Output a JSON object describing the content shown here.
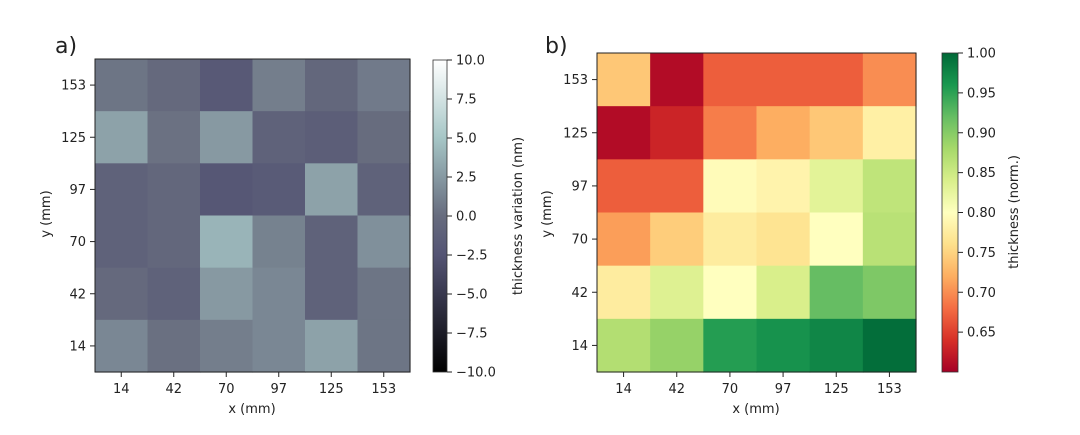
{
  "chart_data": [
    {
      "type": "heatmap",
      "panel_label": "a)",
      "x_ticks": [
        "14",
        "42",
        "70",
        "97",
        "125",
        "153"
      ],
      "y_ticks": [
        "14",
        "42",
        "70",
        "97",
        "125",
        "153"
      ],
      "xlabel": "x (mm)",
      "ylabel": "y (mm)",
      "colorbar": {
        "label": "thickness variation (nm)",
        "range": [
          -10,
          10
        ],
        "ticks": [
          "10.0",
          "7.5",
          "5.0",
          "2.5",
          "0.0",
          "−2.5",
          "−5.0",
          "−7.5",
          "−10.0"
        ],
        "tick_values": [
          10,
          7.5,
          5,
          2.5,
          0,
          -2.5,
          -5,
          -7.5,
          -10
        ],
        "colormap": "bone"
      },
      "values": [
        [
          0.5,
          -0.3,
          -2.0,
          1.0,
          -0.5,
          0.8
        ],
        [
          3.0,
          0.3,
          2.5,
          -1.0,
          -1.5,
          0.0
        ],
        [
          -1.0,
          -0.5,
          -2.2,
          -1.8,
          3.0,
          -1.0
        ],
        [
          -1.0,
          -0.5,
          4.0,
          1.2,
          -1.0,
          2.0
        ],
        [
          -0.3,
          -1.0,
          2.5,
          1.5,
          -1.0,
          0.5
        ],
        [
          1.5,
          0.2,
          1.0,
          1.5,
          3.0,
          0.5
        ]
      ],
      "values_order": "rows listed from y=153 (top) to y=14 (bottom), columns x=14..153"
    },
    {
      "type": "heatmap",
      "panel_label": "b)",
      "x_ticks": [
        "14",
        "42",
        "70",
        "97",
        "125",
        "153"
      ],
      "y_ticks": [
        "14",
        "42",
        "70",
        "97",
        "125",
        "153"
      ],
      "xlabel": "x (mm)",
      "ylabel": "y (mm)",
      "colorbar": {
        "label": "thickness (norm.)",
        "range": [
          0.6,
          1.0
        ],
        "ticks": [
          "1.00",
          "0.95",
          "0.90",
          "0.85",
          "0.80",
          "0.75",
          "0.70",
          "0.65"
        ],
        "tick_values": [
          1.0,
          0.95,
          0.9,
          0.85,
          0.8,
          0.75,
          0.7,
          0.65
        ],
        "colormap": "RdYlGn"
      },
      "values": [
        [
          0.74,
          0.61,
          0.67,
          0.67,
          0.67,
          0.7
        ],
        [
          0.61,
          0.63,
          0.69,
          0.72,
          0.74,
          0.78
        ],
        [
          0.67,
          0.67,
          0.795,
          0.785,
          0.83,
          0.86
        ],
        [
          0.71,
          0.745,
          0.775,
          0.765,
          0.8,
          0.865
        ],
        [
          0.775,
          0.835,
          0.8,
          0.84,
          0.92,
          0.905
        ],
        [
          0.87,
          0.89,
          0.955,
          0.965,
          0.975,
          0.995
        ]
      ],
      "values_order": "rows listed from y=153 (top) to y=14 (bottom), columns x=14..153"
    }
  ]
}
